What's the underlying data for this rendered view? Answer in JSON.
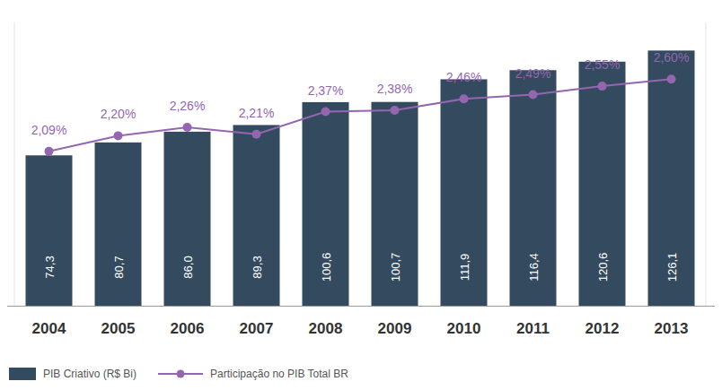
{
  "chart_data": {
    "type": "bar",
    "categories": [
      "2004",
      "2005",
      "2006",
      "2007",
      "2008",
      "2009",
      "2010",
      "2011",
      "2012",
      "2013"
    ],
    "series": [
      {
        "name": "PIB Criativo (R$ Bi)",
        "type": "bar",
        "color": "#344b5f",
        "values": [
          74.3,
          80.7,
          86.0,
          89.3,
          100.6,
          100.7,
          111.9,
          116.4,
          120.6,
          126.1
        ],
        "value_labels": [
          "74,3",
          "80,7",
          "86,0",
          "89,3",
          "100,6",
          "100,7",
          "111,9",
          "116,4",
          "120,6",
          "126,1"
        ]
      },
      {
        "name": "Participação no PIB Total BR",
        "type": "line",
        "axis": "y2",
        "color": "#9466b0",
        "marker": "circle",
        "values": [
          2.09,
          2.2,
          2.26,
          2.21,
          2.37,
          2.38,
          2.46,
          2.49,
          2.55,
          2.6
        ],
        "value_labels": [
          "2,09%",
          "2,20%",
          "2,26%",
          "2,21%",
          "2,37%",
          "2,38%",
          "2,46%",
          "2,49%",
          "2,55%",
          "2,60%"
        ]
      }
    ],
    "ylim": [
      0,
      140
    ],
    "y2lim": [
      1.0,
      3.0
    ],
    "data_labels": true,
    "tick_labels": "x",
    "legend": "bottom-left",
    "grid": false
  }
}
